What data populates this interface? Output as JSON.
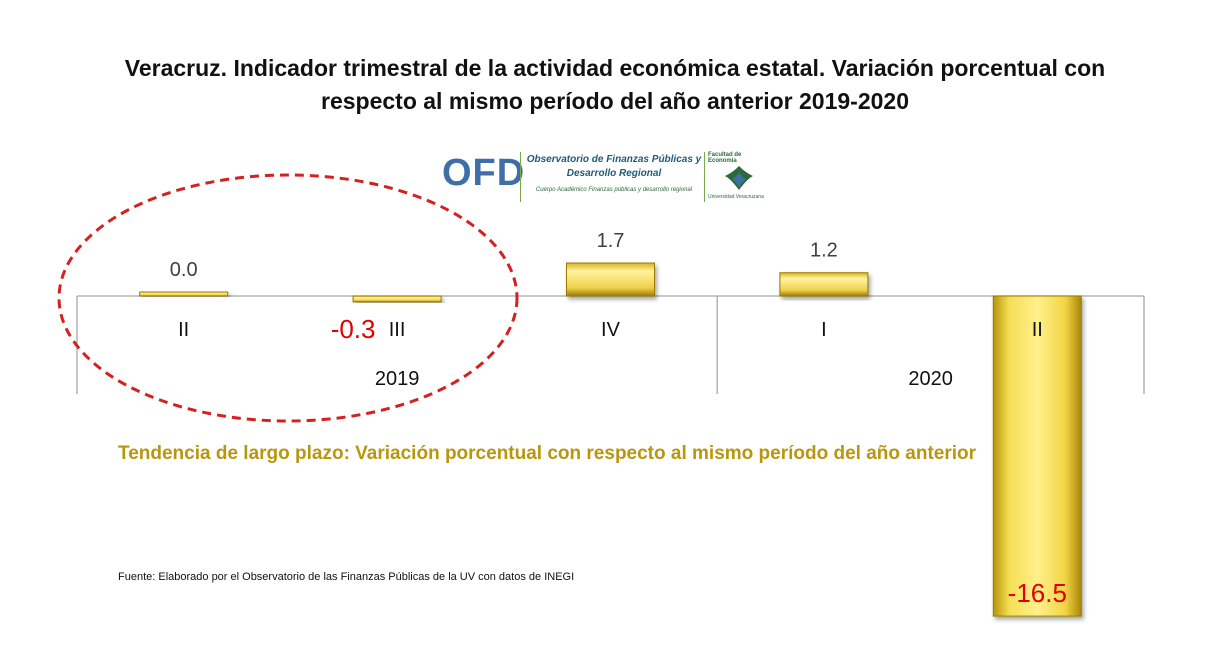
{
  "title": "Veracruz. Indicador trimestral de la actividad económica estatal. Variación porcentual con respecto al mismo período del año anterior 2019-2020",
  "logo": {
    "acronym": "OFD",
    "name_line1": "Observatorio de Finanzas Públicas y",
    "name_line2": "Desarrollo Regional",
    "group": "Cuerpo Académico Finanzas públicas y desarrollo regional",
    "faculty": "Facultad de Economía",
    "university": "Universidad Veracruzana"
  },
  "subtitle": "Tendencia de largo plazo: Variación porcentual con respecto al mismo período del año anterior",
  "source": "Fuente: Elaborado por el Observatorio de las Finanzas Públicas de la UV con datos de INEGI",
  "chart_data": {
    "type": "bar",
    "categories": [
      "II",
      "III",
      "IV",
      "I",
      "II"
    ],
    "groups": [
      {
        "label": "2019",
        "categories": [
          "II",
          "III",
          "IV"
        ]
      },
      {
        "label": "2020",
        "categories": [
          "I",
          "II"
        ]
      }
    ],
    "values": [
      0.0,
      -0.3,
      1.7,
      1.2,
      -16.5
    ],
    "value_labels": [
      "0.0",
      "-0.3",
      "1.7",
      "1.2",
      "-16.5"
    ],
    "highlighted_negative_labels": [
      "-0.3",
      "-16.5"
    ],
    "highlight_region": "dashed red ellipse around 2019 II and III",
    "ylabel": "",
    "xlabel": "",
    "colors": {
      "bar": "#e8c72a",
      "negative_label": "#e00000",
      "ellipse": "#d42020",
      "axis": "#a6a6a6"
    }
  }
}
